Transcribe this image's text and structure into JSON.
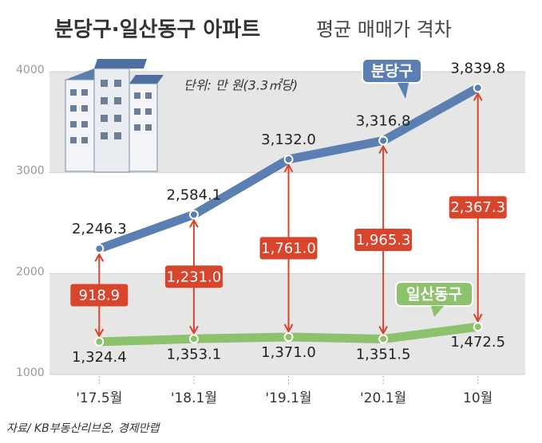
{
  "chart_data": {
    "type": "line",
    "title": "분당구·일산동구 아파트",
    "subtitle": "평균 매매가 격차",
    "unit_note": "단위: 만 원(3.3㎡당)",
    "source": "자료/ KB부동산리브온, 경제만랩",
    "categories": [
      "'17.5월",
      "'18.1월",
      "'19.1월",
      "'20.1월",
      "10월"
    ],
    "series": [
      {
        "name": "분당구",
        "color": "#5b7fb2",
        "values": [
          2246.3,
          2584.1,
          3132.0,
          3316.8,
          3839.8
        ],
        "value_labels": [
          "2,246.3",
          "2,584.1",
          "3,132.0",
          "3,316.8",
          "3,839.8"
        ]
      },
      {
        "name": "일산동구",
        "color": "#8cc26c",
        "values": [
          1324.4,
          1353.1,
          1371.0,
          1351.5,
          1472.5
        ],
        "value_labels": [
          "1,324.4",
          "1,353.1",
          "1,371.0",
          "1,351.5",
          "1,472.5"
        ]
      }
    ],
    "differences": {
      "color": "#d9452c",
      "values": [
        918.9,
        1231.0,
        1761.0,
        1965.3,
        2367.3
      ],
      "value_labels": [
        "918.9",
        "1,231.0",
        "1,761.0",
        "1,965.3",
        "2,367.3"
      ]
    },
    "ylim": [
      1000,
      4000
    ],
    "yticks": [
      1000,
      2000,
      3000,
      4000
    ],
    "grid": true
  }
}
